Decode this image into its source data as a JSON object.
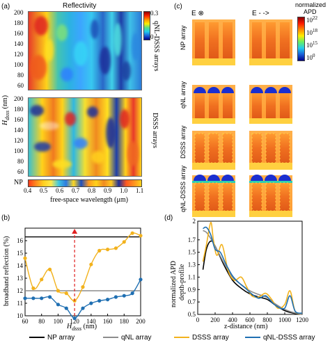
{
  "panel_labels": {
    "a": "(a)",
    "b": "(b)",
    "c": "(c)",
    "d": "(d)"
  },
  "panel_a": {
    "title": "Reflectivity",
    "colorbar": {
      "max": "0.3",
      "min": "0"
    },
    "row_label_top": "qNL-DSSS arrays",
    "row_label_bottom": "DSSS arrays",
    "ylabel_main": "H",
    "ylabel_sub": "dsss",
    "ylabel_unit": " (nm)",
    "yticks_top": [
      "200",
      "180",
      "160",
      "140",
      "120",
      "100",
      "80",
      "60"
    ],
    "yticks_bottom": [
      "200",
      "180",
      "160",
      "140",
      "120",
      "100",
      "80",
      "60"
    ],
    "np_label": "NP",
    "xticks": [
      "0.4",
      "0.5",
      "0.6",
      "0.7",
      "0.8",
      "0.9",
      "1.0",
      "1.1"
    ],
    "xlabel": "free-space wavelength (μm)"
  },
  "panel_c": {
    "e_label_left": "E ⊗",
    "e_label_right": "E - ->",
    "cbar_title_line1": "normalized",
    "cbar_title_line2": "APD",
    "cbar_ticks": [
      "10",
      "10",
      "10",
      "10"
    ],
    "cbar_exps": [
      "22",
      "18",
      "15",
      "0"
    ],
    "row_labels": [
      "NP array",
      "qNL array",
      "DSSS array",
      "qNL-DSSS array"
    ]
  },
  "panel_b": {
    "chart_data": {
      "type": "line",
      "xlabel_main": "H",
      "xlabel_sub": "dsss",
      "xlabel_unit": " (nm)",
      "ylabel": "broadband reflection (%)",
      "xlim": [
        60,
        200
      ],
      "ylim": [
        10,
        17
      ],
      "xticks": [
        60,
        80,
        100,
        120,
        140,
        160,
        180,
        200
      ],
      "yticks": [
        10,
        11,
        12,
        13,
        14,
        15,
        16
      ],
      "series": [
        {
          "name": "NP array",
          "color": "#000000",
          "marker": false,
          "x": [
            60,
            200
          ],
          "y": [
            16.3,
            16.3
          ]
        },
        {
          "name": "qNL array",
          "color": "#8c8c8c",
          "marker": false,
          "x": [
            60,
            200
          ],
          "y": [
            12.0,
            12.0
          ]
        },
        {
          "name": "DSSS array",
          "color": "#f2b21d",
          "marker": true,
          "x": [
            60,
            70,
            80,
            90,
            100,
            110,
            120,
            130,
            140,
            150,
            160,
            170,
            180,
            190,
            200
          ],
          "y": [
            14.6,
            12.2,
            12.9,
            13.7,
            12.0,
            11.8,
            11.2,
            12.3,
            14.1,
            15.2,
            15.3,
            15.4,
            15.9,
            16.6,
            16.4
          ]
        },
        {
          "name": "qNL-DSSS array",
          "color": "#1f6fb2",
          "marker": true,
          "x": [
            60,
            70,
            80,
            90,
            100,
            110,
            120,
            130,
            140,
            150,
            160,
            170,
            180,
            190,
            200
          ],
          "y": [
            11.4,
            11.4,
            11.4,
            11.5,
            10.9,
            10.6,
            9.8,
            10.6,
            11.0,
            11.2,
            11.3,
            11.5,
            11.6,
            11.8,
            12.9
          ]
        }
      ],
      "marker_x": 120
    }
  },
  "panel_d": {
    "chart_data": {
      "type": "line",
      "xlabel": "z-distance (nm)",
      "ylabel_line1": "normalized APD",
      "ylabel_line2": "depth-profile",
      "xlim": [
        0,
        1200
      ],
      "ylim": [
        0.5,
        2
      ],
      "xticks": [
        0,
        200,
        400,
        600,
        800,
        1000,
        1200
      ],
      "yticks": [
        "0.5",
        "0.7",
        "0.9",
        "1.1",
        "1.3",
        "1.5",
        "1.7",
        "2"
      ],
      "series": [
        {
          "name": "NP array",
          "color": "#000000",
          "x": [
            60,
            100,
            150,
            200,
            300,
            400,
            500,
            600,
            700,
            800,
            900,
            1000,
            1100,
            1200
          ],
          "y": [
            1.22,
            1.55,
            1.68,
            1.6,
            1.3,
            1.05,
            0.92,
            0.83,
            0.78,
            0.74,
            0.64,
            0.56,
            0.52,
            0.5
          ]
        },
        {
          "name": "qNL array",
          "color": "#8c8c8c",
          "x": [
            60,
            100,
            150,
            200,
            300,
            400,
            500,
            600,
            700,
            800,
            900,
            1000,
            1100,
            1200
          ],
          "y": [
            1.85,
            1.82,
            1.72,
            1.6,
            1.33,
            1.1,
            0.98,
            0.88,
            0.82,
            0.77,
            0.66,
            0.58,
            0.53,
            0.5
          ]
        },
        {
          "name": "DSSS array",
          "color": "#f2b21d",
          "x": [
            60,
            100,
            150,
            180,
            220,
            280,
            350,
            420,
            500,
            560,
            620,
            700,
            780,
            850,
            920,
            1000,
            1060,
            1120,
            1200
          ],
          "y": [
            1.35,
            1.62,
            1.98,
            1.7,
            1.45,
            1.62,
            1.2,
            1.05,
            1.1,
            0.95,
            0.8,
            0.78,
            0.84,
            0.74,
            0.6,
            0.66,
            0.88,
            0.55,
            0.52
          ]
        },
        {
          "name": "qNL-DSSS array",
          "color": "#1f6fb2",
          "x": [
            60,
            100,
            150,
            200,
            260,
            320,
            400,
            480,
            550,
            620,
            700,
            780,
            850,
            920,
            1000,
            1060,
            1120,
            1200
          ],
          "y": [
            1.88,
            1.9,
            1.78,
            1.55,
            1.5,
            1.32,
            1.12,
            1.0,
            0.92,
            0.83,
            0.76,
            0.8,
            0.7,
            0.62,
            0.6,
            0.8,
            0.55,
            0.52
          ]
        }
      ]
    }
  },
  "legend": [
    {
      "label": "NP array",
      "color": "#000000"
    },
    {
      "label": "qNL array",
      "color": "#8c8c8c"
    },
    {
      "label": "DSSS array",
      "color": "#f2b21d"
    },
    {
      "label": "qNL-DSSS array",
      "color": "#1f6fb2"
    }
  ]
}
